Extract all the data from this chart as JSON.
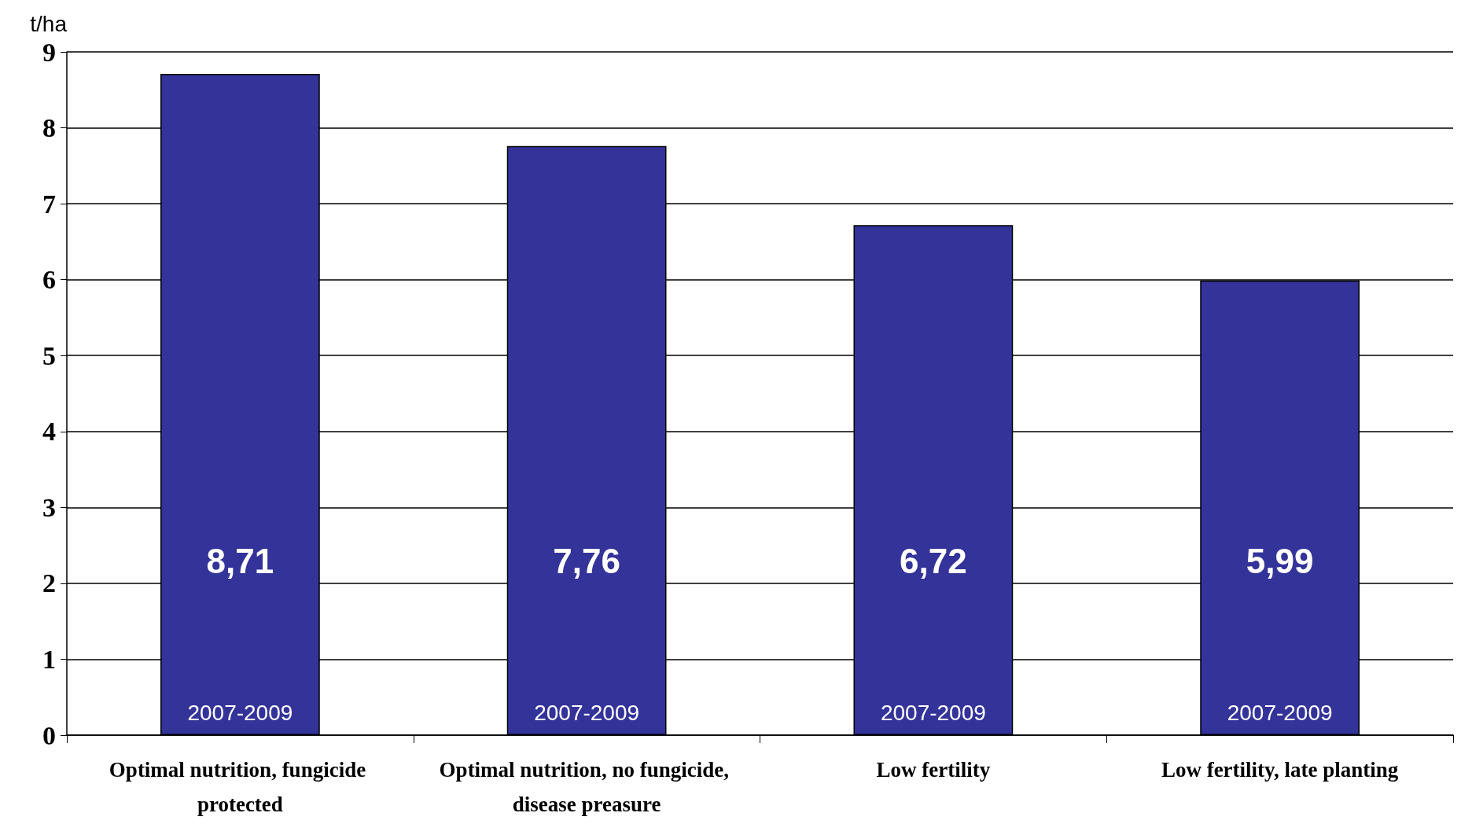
{
  "chart_data": {
    "type": "bar",
    "ylabel": "t/ha",
    "categories": [
      "Optimal nutrition, fungicide protected",
      "Optimal nutrition, no fungicide, disease preasure",
      "Low fertility",
      "Low fertility, late planting"
    ],
    "values": [
      8.71,
      7.76,
      6.72,
      5.99
    ],
    "value_labels": [
      "8,71",
      "7,76",
      "6,72",
      "5,99"
    ],
    "color": "#333399",
    "ylim": [
      0,
      9
    ],
    "yticks": [
      0,
      1,
      2,
      3,
      4,
      5,
      6,
      7,
      8,
      9
    ],
    "grid": "y",
    "annotations": [
      "2007-2009",
      "2007-2009",
      "2007-2009",
      "2007-2009"
    ]
  }
}
